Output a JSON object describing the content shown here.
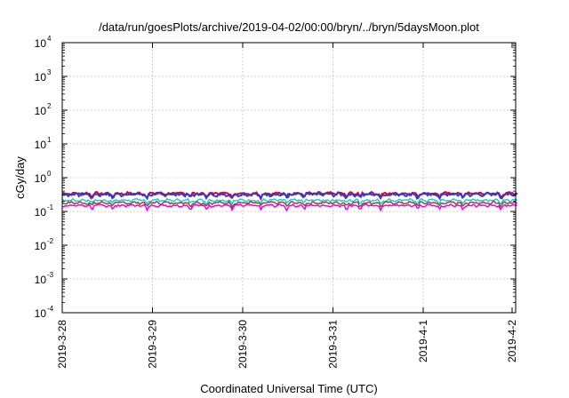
{
  "chart_data": {
    "type": "line",
    "title": "/data/run/goesPlots/archive/2019-04-02/00:00/bryn/../bryn/5daysMoon.plot",
    "xlabel": "Coordinated Universal Time (UTC)",
    "ylabel": "cGy/day",
    "yscale": "log",
    "ylim": [
      0.0001,
      10000
    ],
    "y_ticks": [
      {
        "base": "10",
        "exp": "-4",
        "value": 0.0001
      },
      {
        "base": "10",
        "exp": "-3",
        "value": 0.001
      },
      {
        "base": "10",
        "exp": "-2",
        "value": 0.01
      },
      {
        "base": "10",
        "exp": "-1",
        "value": 0.1
      },
      {
        "base": "10",
        "exp": "0",
        "value": 1
      },
      {
        "base": "10",
        "exp": "1",
        "value": 10
      },
      {
        "base": "10",
        "exp": "2",
        "value": 100
      },
      {
        "base": "10",
        "exp": "3",
        "value": 1000
      },
      {
        "base": "10",
        "exp": "4",
        "value": 10000
      }
    ],
    "xlim": [
      "2019-3-28",
      "2019-4-2"
    ],
    "x_ticks": [
      "2019-3-28",
      "2019-3-29",
      "2019-3-30",
      "2019-3-31",
      "2019-4-1",
      "2019-4-2"
    ],
    "grid": true,
    "series": [
      {
        "color": "#e0002a",
        "base": 0.34,
        "amp": 0.05,
        "dip": 0.55
      },
      {
        "color": "#2a3cd8",
        "base": 0.32,
        "amp": 0.06,
        "dip": 0.5
      },
      {
        "color": "#22cccc",
        "base": 0.215,
        "amp": 0.03,
        "dip": 0.55
      },
      {
        "color": "#8a5030",
        "base": 0.18,
        "amp": 0.025,
        "dip": 0.55
      },
      {
        "color": "#ee00ee",
        "base": 0.15,
        "amp": 0.02,
        "dip": 0.45
      }
    ],
    "dips": [
      0.33,
      0.56,
      0.94,
      1.42,
      1.6,
      1.88,
      2.2,
      2.49,
      2.68,
      3.15,
      3.3,
      3.53,
      3.94,
      4.18,
      4.44,
      4.86
    ]
  }
}
